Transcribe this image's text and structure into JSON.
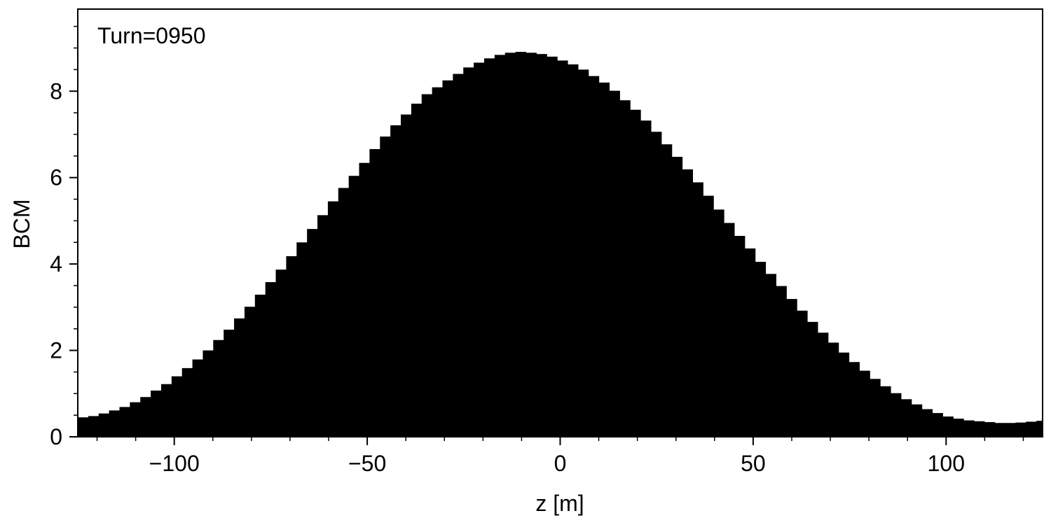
{
  "chart_data": {
    "type": "bar",
    "style": "histogram-filled",
    "color": "#000000",
    "annotation": "Turn=0950",
    "xlabel": "z [m]",
    "ylabel": "BCM",
    "xlim": [
      -125,
      125
    ],
    "ylim": [
      0,
      9.9
    ],
    "x_ticks": [
      -100,
      -50,
      0,
      50,
      100
    ],
    "x_tick_labels": [
      "−100",
      "−50",
      "0",
      "50",
      "100"
    ],
    "x_minor_step": 10,
    "y_ticks": [
      0,
      2,
      4,
      6,
      8
    ],
    "y_tick_labels": [
      "0",
      "2",
      "4",
      "6",
      "8"
    ],
    "y_minor_step": 0.5,
    "bin_start": -125,
    "bin_width": 2.7,
    "values": [
      0.45,
      0.48,
      0.54,
      0.61,
      0.69,
      0.8,
      0.92,
      1.07,
      1.22,
      1.4,
      1.59,
      1.79,
      2.0,
      2.24,
      2.48,
      2.74,
      3.01,
      3.29,
      3.58,
      3.87,
      4.18,
      4.5,
      4.81,
      5.13,
      5.45,
      5.76,
      6.04,
      6.34,
      6.66,
      6.95,
      7.21,
      7.46,
      7.71,
      7.93,
      8.09,
      8.25,
      8.4,
      8.55,
      8.66,
      8.76,
      8.84,
      8.89,
      8.91,
      8.89,
      8.86,
      8.8,
      8.71,
      8.62,
      8.5,
      8.35,
      8.2,
      8.01,
      7.79,
      7.57,
      7.32,
      7.06,
      6.77,
      6.48,
      6.19,
      5.89,
      5.58,
      5.26,
      4.95,
      4.65,
      4.36,
      4.05,
      3.77,
      3.49,
      3.19,
      2.92,
      2.66,
      2.41,
      2.18,
      1.95,
      1.73,
      1.53,
      1.34,
      1.17,
      1.01,
      0.87,
      0.75,
      0.64,
      0.55,
      0.47,
      0.42,
      0.38,
      0.36,
      0.34,
      0.32,
      0.32,
      0.33,
      0.35,
      0.37,
      0.4
    ]
  }
}
